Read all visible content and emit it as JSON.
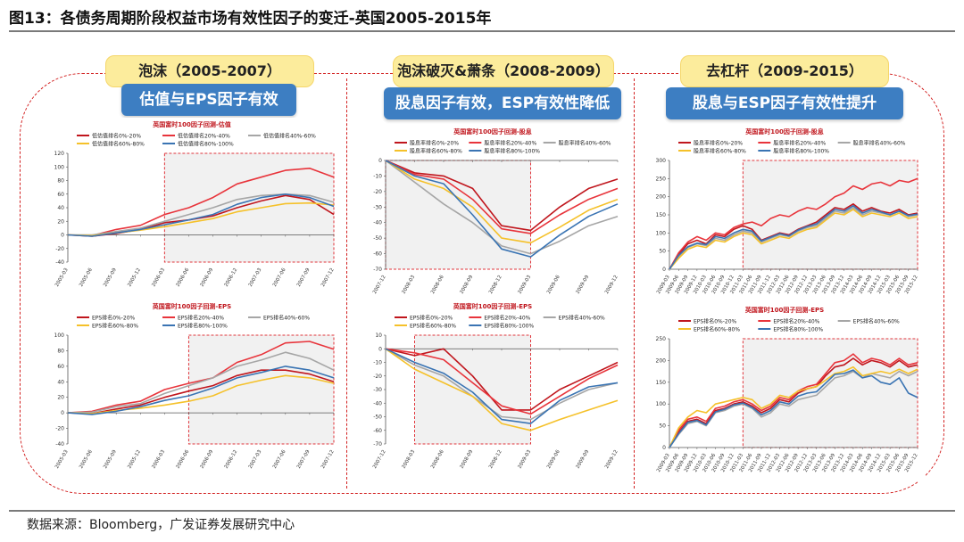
{
  "header": {
    "title": "图13：各债务周期阶段权益市场有效性因子的变迁-英国2005-2015年"
  },
  "footer": {
    "source": "数据来源：Bloomberg，广发证券发展研究中心"
  },
  "phases": [
    {
      "label": "泡沫（2005-2007）",
      "subtitle": "估值与EPS因子有效"
    },
    {
      "label": "泡沫破灭&萧条（2008-2009）",
      "subtitle": "股息因子有效，ESP有效性降低"
    },
    {
      "label": "去杠杆（2009-2015）",
      "subtitle": "股息与ESP因子有效性提升"
    }
  ],
  "colors": {
    "accent": "#3d7ec2",
    "phase_bg": "#fcec9c",
    "border": "#d21f1f"
  },
  "chart_data": [
    {
      "type": "line",
      "title": "英国富时100因子回测-估值",
      "xlabel": "",
      "ylabel": "",
      "ylim": [
        -40,
        120
      ],
      "yticks": [
        -40,
        -20,
        0,
        20,
        40,
        60,
        80,
        100,
        120
      ],
      "categories": [
        "2005-03",
        "2005-06",
        "2005-09",
        "2005-12",
        "2006-03",
        "2006-06",
        "2006-09",
        "2006-12",
        "2007-03",
        "2007-06",
        "2007-09",
        "2007-12"
      ],
      "highlight": [
        4,
        11
      ],
      "series": [
        {
          "name": "低估值排名0%-20%",
          "color": "#c0161d",
          "values": [
            0,
            -2,
            2,
            8,
            18,
            22,
            28,
            40,
            50,
            58,
            52,
            30
          ]
        },
        {
          "name": "低估值排名20%-40%",
          "color": "#e8343b",
          "values": [
            0,
            -1,
            8,
            14,
            30,
            40,
            55,
            75,
            85,
            95,
            98,
            85
          ]
        },
        {
          "name": "低估值排名40%-60%",
          "color": "#a6a6a6",
          "values": [
            0,
            0,
            5,
            10,
            20,
            30,
            40,
            52,
            58,
            60,
            58,
            48
          ]
        },
        {
          "name": "低估值排名60%-80%",
          "color": "#f5c12a",
          "values": [
            0,
            -1,
            3,
            7,
            12,
            18,
            24,
            34,
            40,
            46,
            47,
            44
          ]
        },
        {
          "name": "低估值排名80%-100%",
          "color": "#3a74b3",
          "values": [
            0,
            -2,
            3,
            8,
            15,
            22,
            30,
            45,
            55,
            60,
            55,
            42
          ]
        }
      ]
    },
    {
      "type": "line",
      "title": "英国富时100因子回测-股息",
      "xlabel": "",
      "ylabel": "",
      "ylim": [
        -70,
        0
      ],
      "yticks": [
        -70,
        -60,
        -50,
        -40,
        -30,
        -20,
        -10,
        0
      ],
      "categories": [
        "2007-12",
        "2008-03",
        "2008-06",
        "2008-09",
        "2008-12",
        "2009-03",
        "2009-06",
        "2009-09",
        "2009-12"
      ],
      "highlight": [
        0,
        5
      ],
      "series": [
        {
          "name": "股息率排名0%-20%",
          "color": "#c0161d",
          "values": [
            0,
            -8,
            -10,
            -18,
            -42,
            -45,
            -30,
            -18,
            -12
          ]
        },
        {
          "name": "股息率排名20%-40%",
          "color": "#e8343b",
          "values": [
            0,
            -9,
            -12,
            -25,
            -44,
            -47,
            -35,
            -25,
            -18
          ]
        },
        {
          "name": "股息率排名40%-60%",
          "color": "#a6a6a6",
          "values": [
            0,
            -14,
            -28,
            -40,
            -55,
            -60,
            -52,
            -42,
            -36
          ]
        },
        {
          "name": "股息率排名60%-80%",
          "color": "#f5c12a",
          "values": [
            0,
            -12,
            -18,
            -30,
            -50,
            -53,
            -43,
            -32,
            -25
          ]
        },
        {
          "name": "股息率排名80%-100%",
          "color": "#3a74b3",
          "values": [
            0,
            -10,
            -15,
            -35,
            -57,
            -62,
            -48,
            -36,
            -28
          ]
        }
      ]
    },
    {
      "type": "line",
      "title": "英国富时100因子回测-股息",
      "xlabel": "",
      "ylabel": "",
      "ylim": [
        0,
        300
      ],
      "yticks": [
        0,
        50,
        100,
        150,
        200,
        250,
        300
      ],
      "categories": [
        "2009-03",
        "2009-06",
        "2009-09",
        "2009-12",
        "2010-03",
        "2010-06",
        "2010-09",
        "2010-12",
        "2011-03",
        "2011-06",
        "2011-09",
        "2011-12",
        "2012-03",
        "2012-06",
        "2012-09",
        "2012-12",
        "2013-03",
        "2013-06",
        "2013-09",
        "2013-12",
        "2014-03",
        "2014-06",
        "2014-09",
        "2014-12",
        "2015-03",
        "2015-06",
        "2015-09",
        "2015-12"
      ],
      "highlight": [
        8,
        27
      ],
      "series": [
        {
          "name": "股息率排名0%-20%",
          "color": "#c0161d",
          "values": [
            0,
            40,
            70,
            80,
            70,
            95,
            90,
            110,
            120,
            110,
            80,
            90,
            100,
            95,
            110,
            120,
            130,
            150,
            170,
            165,
            180,
            160,
            170,
            160,
            155,
            165,
            150,
            155
          ]
        },
        {
          "name": "股息率排名20%-40%",
          "color": "#e8343b",
          "values": [
            0,
            45,
            75,
            90,
            80,
            100,
            95,
            115,
            125,
            130,
            120,
            140,
            150,
            145,
            160,
            170,
            165,
            180,
            200,
            210,
            230,
            220,
            235,
            240,
            230,
            245,
            240,
            250
          ]
        },
        {
          "name": "股息率排名40%-60%",
          "color": "#a6a6a6",
          "values": [
            0,
            35,
            60,
            70,
            65,
            85,
            80,
            95,
            105,
            100,
            75,
            85,
            95,
            90,
            105,
            115,
            120,
            140,
            160,
            155,
            170,
            150,
            160,
            155,
            150,
            160,
            145,
            150
          ]
        },
        {
          "name": "股息率排名60%-80%",
          "color": "#f5c12a",
          "values": [
            0,
            30,
            55,
            65,
            60,
            80,
            75,
            90,
            100,
            95,
            70,
            80,
            90,
            85,
            100,
            110,
            115,
            135,
            155,
            150,
            165,
            145,
            155,
            150,
            145,
            155,
            140,
            145
          ]
        },
        {
          "name": "股息率排名80%-100%",
          "color": "#3a74b3",
          "values": [
            0,
            38,
            62,
            72,
            68,
            90,
            85,
            100,
            110,
            105,
            78,
            88,
            98,
            92,
            108,
            118,
            125,
            145,
            165,
            160,
            175,
            155,
            165,
            158,
            150,
            160,
            148,
            152
          ]
        }
      ]
    },
    {
      "type": "line",
      "title": "英国富时100因子回测-EPS",
      "xlabel": "",
      "ylabel": "",
      "ylim": [
        -40,
        100
      ],
      "yticks": [
        -40,
        -20,
        0,
        20,
        40,
        60,
        80,
        100
      ],
      "categories": [
        "2005-03",
        "2005-06",
        "2005-09",
        "2005-12",
        "2006-03",
        "2006-06",
        "2006-09",
        "2006-12",
        "2007-03",
        "2007-06",
        "2007-09",
        "2007-12"
      ],
      "highlight": [
        5,
        11
      ],
      "series": [
        {
          "name": "EPS排名0%-20%",
          "color": "#c0161d",
          "values": [
            0,
            -1,
            5,
            10,
            20,
            28,
            35,
            48,
            55,
            55,
            50,
            40
          ]
        },
        {
          "name": "EPS排名20%-40%",
          "color": "#e8343b",
          "values": [
            0,
            2,
            10,
            15,
            30,
            38,
            45,
            65,
            75,
            90,
            92,
            82
          ]
        },
        {
          "name": "EPS排名40%-60%",
          "color": "#a6a6a6",
          "values": [
            0,
            1,
            8,
            12,
            25,
            35,
            45,
            60,
            68,
            78,
            70,
            55
          ]
        },
        {
          "name": "EPS排名60%-80%",
          "color": "#f5c12a",
          "values": [
            0,
            -1,
            3,
            6,
            10,
            15,
            22,
            35,
            42,
            48,
            45,
            38
          ]
        },
        {
          "name": "EPS排名80%-100%",
          "color": "#3a74b3",
          "values": [
            0,
            -2,
            2,
            8,
            16,
            22,
            32,
            45,
            52,
            60,
            55,
            45
          ]
        }
      ]
    },
    {
      "type": "line",
      "title": "英国富时100因子回测-EPS",
      "xlabel": "",
      "ylabel": "",
      "ylim": [
        -70,
        10
      ],
      "yticks": [
        -70,
        -60,
        -50,
        -40,
        -30,
        -20,
        -10,
        0,
        10
      ],
      "categories": [
        "2007-12",
        "2008-03",
        "2008-06",
        "2008-09",
        "2008-12",
        "2009-03",
        "2009-06",
        "2009-09",
        "2009-12"
      ],
      "highlight": [
        1,
        5
      ],
      "series": [
        {
          "name": "EPS排名0%-20%",
          "color": "#c0161d",
          "values": [
            0,
            -5,
            0,
            -20,
            -45,
            -45,
            -30,
            -20,
            -10
          ]
        },
        {
          "name": "EPS排名20%-40%",
          "color": "#e8343b",
          "values": [
            0,
            -3,
            -8,
            -25,
            -42,
            -48,
            -35,
            -22,
            -12
          ]
        },
        {
          "name": "EPS排名40%-60%",
          "color": "#a6a6a6",
          "values": [
            0,
            -12,
            -20,
            -35,
            -50,
            -52,
            -40,
            -30,
            -25
          ]
        },
        {
          "name": "EPS排名60%-80%",
          "color": "#f5c12a",
          "values": [
            0,
            -15,
            -25,
            -35,
            -55,
            -60,
            -52,
            -45,
            -38
          ]
        },
        {
          "name": "EPS排名80%-100%",
          "color": "#3a74b3",
          "values": [
            0,
            -10,
            -18,
            -32,
            -52,
            -55,
            -38,
            -28,
            -25
          ]
        }
      ]
    },
    {
      "type": "line",
      "title": "英国富时100因子回测-EPS",
      "xlabel": "",
      "ylabel": "",
      "ylim": [
        0,
        250
      ],
      "yticks": [
        0,
        50,
        100,
        150,
        200,
        250
      ],
      "categories": [
        "2009-03",
        "2009-06",
        "2009-09",
        "2009-12",
        "2010-03",
        "2010-06",
        "2010-09",
        "2010-12",
        "2011-03",
        "2011-06",
        "2011-09",
        "2011-12",
        "2012-03",
        "2012-06",
        "2012-09",
        "2012-12",
        "2013-03",
        "2013-06",
        "2013-09",
        "2013-12",
        "2014-03",
        "2014-06",
        "2014-09",
        "2014-12",
        "2015-03",
        "2015-06",
        "2015-09",
        "2015-12"
      ],
      "highlight": [
        8,
        27
      ],
      "series": [
        {
          "name": "EPS排名0%-20%",
          "color": "#c0161d",
          "values": [
            0,
            35,
            60,
            65,
            55,
            85,
            90,
            100,
            105,
            95,
            80,
            90,
            110,
            105,
            125,
            135,
            140,
            165,
            185,
            190,
            205,
            190,
            200,
            195,
            185,
            200,
            185,
            190
          ]
        },
        {
          "name": "EPS排名20%-40%",
          "color": "#e8343b",
          "values": [
            0,
            40,
            65,
            70,
            60,
            90,
            95,
            105,
            110,
            100,
            85,
            95,
            115,
            110,
            130,
            140,
            145,
            170,
            195,
            200,
            215,
            195,
            205,
            200,
            190,
            205,
            190,
            195
          ]
        },
        {
          "name": "EPS排名40%-60%",
          "color": "#a6a6a6",
          "values": [
            0,
            30,
            55,
            60,
            50,
            80,
            85,
            95,
            100,
            90,
            70,
            80,
            100,
            95,
            110,
            115,
            120,
            140,
            160,
            165,
            175,
            160,
            170,
            165,
            160,
            175,
            165,
            175
          ]
        },
        {
          "name": "EPS排名60%-80%",
          "color": "#f5c12a",
          "values": [
            0,
            45,
            70,
            85,
            80,
            100,
            105,
            110,
            115,
            110,
            90,
            100,
            120,
            115,
            130,
            135,
            140,
            155,
            170,
            175,
            185,
            165,
            170,
            175,
            170,
            180,
            170,
            180
          ]
        },
        {
          "name": "EPS排名80%-100%",
          "color": "#3a74b3",
          "values": [
            0,
            32,
            58,
            62,
            52,
            82,
            88,
            98,
            102,
            92,
            75,
            85,
            105,
            100,
            118,
            125,
            128,
            148,
            168,
            170,
            178,
            160,
            165,
            150,
            145,
            160,
            125,
            115
          ]
        }
      ]
    }
  ]
}
